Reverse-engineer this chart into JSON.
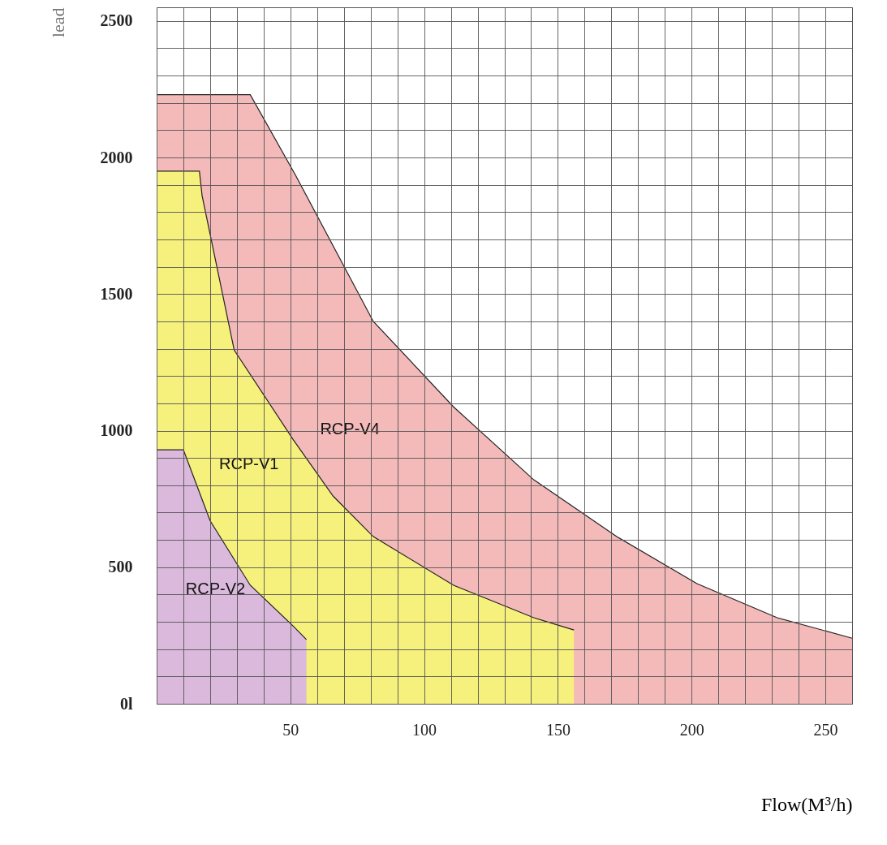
{
  "chart_data": {
    "type": "area",
    "xlabel": "Flow(M³/h)",
    "ylabel": "lead",
    "xlim": [
      0,
      260
    ],
    "ylim": [
      0,
      2550
    ],
    "xticks": [
      {
        "value": 0,
        "label": null
      },
      {
        "value": 10,
        "label": null
      },
      {
        "value": 20,
        "label": null
      },
      {
        "value": 30,
        "label": null
      },
      {
        "value": 40,
        "label": null
      },
      50,
      {
        "value": 60,
        "label": null
      },
      {
        "value": 70,
        "label": null
      },
      {
        "value": 80,
        "label": null
      },
      {
        "value": 90,
        "label": null
      },
      100,
      {
        "value": 110,
        "label": null
      },
      {
        "value": 120,
        "label": null
      },
      {
        "value": 130,
        "label": null
      },
      {
        "value": 140,
        "label": null
      },
      150,
      {
        "value": 160,
        "label": null
      },
      {
        "value": 170,
        "label": null
      },
      {
        "value": 180,
        "label": null
      },
      {
        "value": 190,
        "label": null
      },
      200,
      {
        "value": 210,
        "label": null
      },
      {
        "value": 220,
        "label": null
      },
      {
        "value": 230,
        "label": null
      },
      {
        "value": 240,
        "label": null
      },
      250,
      {
        "value": 260,
        "label": null
      }
    ],
    "yticks": [
      {
        "value": 0,
        "label": "0l"
      },
      {
        "value": 100,
        "label": null
      },
      {
        "value": 200,
        "label": null
      },
      {
        "value": 300,
        "label": null
      },
      {
        "value": 400,
        "label": null
      },
      500,
      {
        "value": 600,
        "label": null
      },
      {
        "value": 700,
        "label": null
      },
      {
        "value": 800,
        "label": null
      },
      {
        "value": 900,
        "label": null
      },
      1000,
      {
        "value": 1100,
        "label": null
      },
      {
        "value": 1200,
        "label": null
      },
      {
        "value": 1300,
        "label": null
      },
      {
        "value": 1400,
        "label": null
      },
      1500,
      {
        "value": 1600,
        "label": null
      },
      {
        "value": 1700,
        "label": null
      },
      {
        "value": 1800,
        "label": null
      },
      {
        "value": 1900,
        "label": null
      },
      2000,
      {
        "value": 2100,
        "label": null
      },
      {
        "value": 2200,
        "label": null
      },
      {
        "value": 2300,
        "label": null
      },
      {
        "value": 2400,
        "label": null
      },
      2500
    ],
    "grid": true,
    "series": [
      {
        "name": "RCP-V4",
        "color": "#f4b9b9",
        "x": [
          0,
          35,
          52,
          81,
          111,
          141,
          172,
          202,
          232,
          260
        ],
        "values": [
          2230,
          2230,
          1934,
          1400,
          1087,
          820,
          612,
          440,
          315,
          240
        ]
      },
      {
        "name": "RCP-V1",
        "color": "#f6f07c",
        "x": [
          0,
          16,
          17,
          29,
          51,
          66,
          81,
          111,
          141,
          156,
          156
        ],
        "values": [
          1950,
          1950,
          1860,
          1295,
          968,
          760,
          612,
          434,
          315,
          270,
          0
        ]
      },
      {
        "name": "RCP-V2",
        "color": "#dab9dd",
        "x": [
          0,
          10,
          20,
          35,
          51,
          56,
          56
        ],
        "values": [
          930,
          930,
          670,
          434,
          285,
          235,
          0
        ]
      }
    ]
  }
}
